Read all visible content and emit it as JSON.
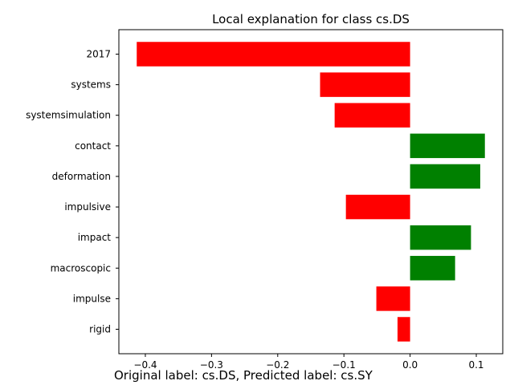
{
  "chart_data": {
    "type": "bar",
    "orientation": "horizontal",
    "title": "Local explanation for class cs.DS",
    "xlabel": "",
    "ylabel": "",
    "categories": [
      "2017",
      "systems",
      "systemsimulation",
      "contact",
      "deformation",
      "impulsive",
      "impact",
      "macroscopic",
      "impulse",
      "rigid"
    ],
    "values": [
      -0.413,
      -0.136,
      -0.114,
      0.113,
      0.106,
      -0.097,
      0.092,
      0.068,
      -0.051,
      -0.019
    ],
    "xlim": [
      -0.44,
      0.14
    ],
    "xticks": [
      -0.4,
      -0.3,
      -0.2,
      -0.1,
      0.0,
      0.1
    ],
    "xtick_labels": [
      "−0.4",
      "−0.3",
      "−0.2",
      "−0.1",
      "0.0",
      "0.1"
    ],
    "colors": {
      "positive": "#008000",
      "negative": "#ff0000"
    },
    "grid": false
  },
  "caption": "Original label: cs.DS, Predicted label: cs.SY"
}
